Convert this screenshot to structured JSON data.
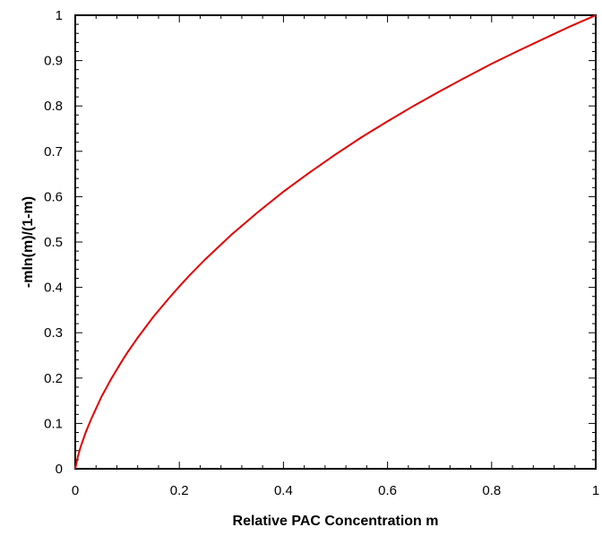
{
  "chart_data": {
    "type": "line",
    "title": "",
    "xlabel": "Relative PAC Concentration m",
    "ylabel": "-mln(m)/(1-m)",
    "xlim": [
      0,
      1
    ],
    "ylim": [
      0,
      1
    ],
    "x_ticks": [
      "0",
      "0.2",
      "0.4",
      "0.6",
      "0.8",
      "1"
    ],
    "y_ticks": [
      "0",
      "0.1",
      "0.2",
      "0.3",
      "0.4",
      "0.5",
      "0.6",
      "0.7",
      "0.8",
      "0.9",
      "1"
    ],
    "grid": false,
    "legend": "none",
    "series": [
      {
        "color": "#e00000",
        "x": [
          0.0,
          0.005,
          0.01,
          0.02,
          0.03,
          0.05,
          0.07,
          0.09,
          0.1,
          0.12,
          0.15,
          0.18,
          0.2,
          0.22,
          0.25,
          0.3,
          0.35,
          0.4,
          0.45,
          0.5,
          0.55,
          0.6,
          0.65,
          0.7,
          0.75,
          0.8,
          0.85,
          0.9,
          0.95,
          0.99,
          1.0
        ],
        "y": [
          0.0,
          0.027,
          0.047,
          0.08,
          0.108,
          0.158,
          0.2,
          0.238,
          0.256,
          0.289,
          0.335,
          0.376,
          0.402,
          0.427,
          0.462,
          0.516,
          0.565,
          0.611,
          0.653,
          0.693,
          0.731,
          0.766,
          0.8,
          0.832,
          0.863,
          0.893,
          0.921,
          0.948,
          0.975,
          0.995,
          1.0
        ]
      }
    ]
  }
}
